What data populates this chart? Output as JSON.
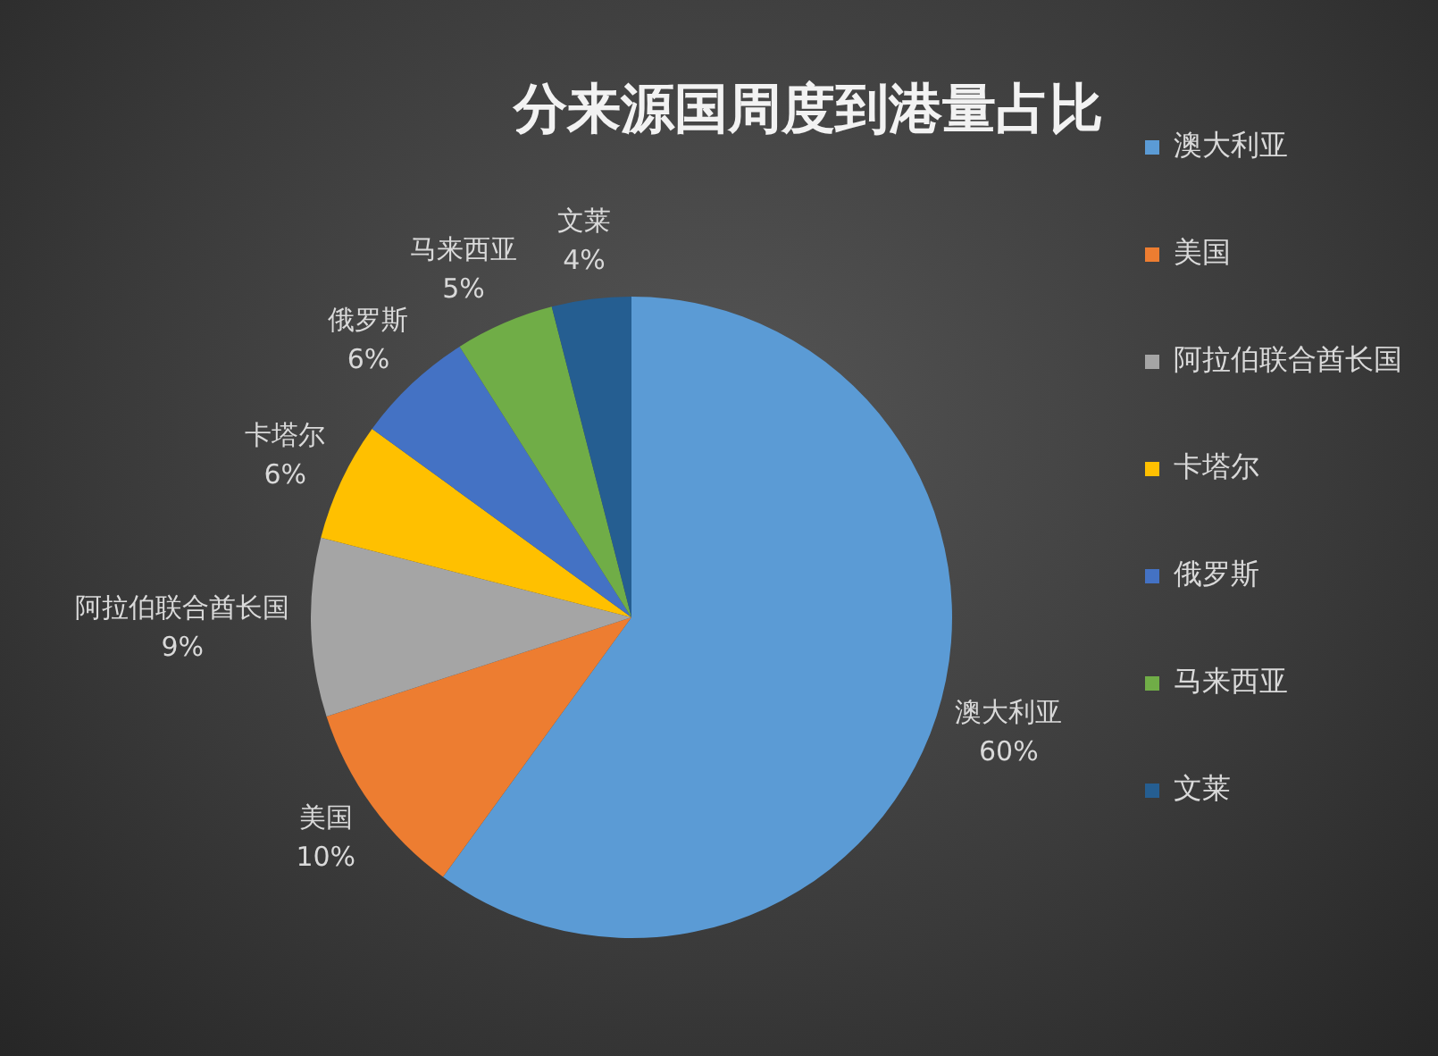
{
  "chart_data": {
    "type": "pie",
    "title": "分来源国周度到港量占比",
    "categories": [
      "澳大利亚",
      "美国",
      "阿拉伯联合酋长国",
      "卡塔尔",
      "俄罗斯",
      "马来西亚",
      "文莱"
    ],
    "values": [
      60,
      10,
      9,
      6,
      6,
      5,
      4
    ],
    "value_labels": [
      "60%",
      "10%",
      "9%",
      "6%",
      "6%",
      "5%",
      "4%"
    ],
    "colors": [
      "#5b9bd5",
      "#ed7d31",
      "#a5a5a5",
      "#ffc000",
      "#4472c4",
      "#70ad47",
      "#255e91"
    ],
    "legend": "right"
  }
}
